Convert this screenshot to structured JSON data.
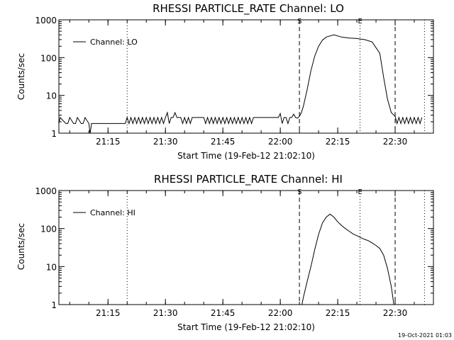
{
  "chart_data": [
    {
      "type": "line",
      "title": "RHESSI PARTICLE_RATE Channel: LO",
      "xlabel": "Start Time (19-Feb-12 21:02:10)",
      "ylabel": "Counts/sec",
      "yscale": "log",
      "ylim": [
        1,
        1000
      ],
      "xlim": [
        "21:02:10",
        "22:40:00"
      ],
      "ytick_labels": [
        "1",
        "10",
        "100",
        "1000"
      ],
      "xtick_labels": [
        "21:15",
        "21:30",
        "21:45",
        "22:00",
        "22:15",
        "22:30"
      ],
      "legend": {
        "entries": [
          "Channel: LO"
        ],
        "position": "top-left"
      },
      "series": [
        {
          "name": "Channel: LO",
          "x": [
            "21:02:10",
            "21:02:30",
            "21:04:00",
            "21:04:30",
            "21:05:00",
            "21:06:00",
            "21:06:30",
            "21:07:00",
            "21:08:00",
            "21:08:30",
            "21:09:00",
            "21:10:00",
            "21:10:20",
            "21:10:40",
            "21:11:00",
            "21:14:00",
            "21:17:00",
            "21:19:30",
            "21:20:00",
            "21:20:30",
            "21:21:00",
            "21:21:30",
            "21:22:00",
            "21:22:30",
            "21:23:00",
            "21:23:30",
            "21:24:00",
            "21:24:30",
            "21:25:00",
            "21:25:30",
            "21:26:00",
            "21:26:30",
            "21:27:00",
            "21:27:30",
            "21:28:00",
            "21:28:30",
            "21:29:00",
            "21:29:30",
            "21:30:00",
            "21:30:30",
            "21:31:00",
            "21:31:30",
            "21:32:00",
            "21:32:30",
            "21:33:00",
            "21:33:30",
            "21:34:00",
            "21:34:30",
            "21:35:00",
            "21:35:30",
            "21:36:00",
            "21:36:30",
            "21:37:00",
            "21:38:00",
            "21:39:00",
            "21:40:00",
            "21:40:30",
            "21:41:00",
            "21:41:30",
            "21:42:00",
            "21:42:30",
            "21:43:00",
            "21:43:30",
            "21:44:00",
            "21:44:30",
            "21:45:00",
            "21:45:30",
            "21:46:00",
            "21:46:30",
            "21:47:00",
            "21:47:30",
            "21:48:00",
            "21:48:30",
            "21:49:00",
            "21:49:30",
            "21:50:00",
            "21:50:30",
            "21:51:00",
            "21:51:30",
            "21:52:00",
            "21:52:30",
            "21:53:00",
            "21:54:00",
            "21:55:00",
            "21:56:00",
            "21:57:00",
            "21:58:00",
            "21:59:00",
            "21:59:30",
            "22:00:00",
            "22:00:30",
            "22:01:00",
            "22:01:30",
            "22:02:00",
            "22:02:30",
            "22:03:00",
            "22:03:30",
            "22:04:00",
            "22:04:30",
            "22:05:00",
            "22:05:30",
            "22:06:00",
            "22:07:00",
            "22:08:00",
            "22:09:00",
            "22:10:00",
            "22:11:00",
            "22:12:00",
            "22:14:00",
            "22:16:00",
            "22:18:00",
            "22:20:00",
            "22:22:00",
            "22:24:00",
            "22:26:00",
            "22:27:00",
            "22:28:00",
            "22:29:00",
            "22:30:00",
            "22:30:30",
            "22:31:00",
            "22:31:30",
            "22:32:00",
            "22:32:30",
            "22:33:00",
            "22:33:30",
            "22:34:00",
            "22:34:30",
            "22:35:00",
            "22:35:30",
            "22:36:00",
            "22:36:30",
            "22:37:00"
          ],
          "y": [
            1.8,
            2.6,
            1.8,
            1.8,
            2.6,
            1.8,
            1.8,
            2.6,
            1.8,
            1.8,
            2.6,
            1.8,
            0.95,
            1.8,
            1.8,
            1.8,
            1.8,
            1.8,
            2.6,
            1.8,
            2.6,
            1.8,
            2.6,
            1.8,
            2.6,
            1.8,
            2.6,
            1.8,
            2.6,
            1.8,
            2.6,
            1.8,
            2.6,
            1.8,
            2.6,
            1.8,
            2.6,
            1.8,
            2.6,
            3.5,
            1.8,
            2.6,
            2.6,
            3.5,
            2.6,
            2.6,
            2.6,
            1.8,
            2.6,
            1.8,
            2.6,
            1.8,
            2.6,
            2.6,
            2.6,
            2.6,
            1.8,
            2.6,
            1.8,
            2.6,
            1.8,
            2.6,
            1.8,
            2.6,
            1.8,
            2.6,
            1.8,
            2.6,
            1.8,
            2.6,
            1.8,
            2.6,
            1.8,
            2.6,
            1.8,
            2.6,
            1.8,
            2.6,
            1.8,
            2.6,
            1.8,
            2.6,
            2.6,
            2.6,
            2.6,
            2.6,
            2.6,
            2.6,
            2.6,
            3.3,
            1.8,
            2.6,
            2.6,
            1.8,
            2.6,
            2.6,
            3.2,
            2.6,
            2.5,
            2.8,
            3.5,
            5,
            14,
            45,
            110,
            200,
            290,
            350,
            400,
            350,
            330,
            320,
            300,
            260,
            130,
            30,
            8,
            3.5,
            2.8,
            1.8,
            2.6,
            1.8,
            2.6,
            1.8,
            2.6,
            1.8,
            2.6,
            1.8,
            2.6,
            1.8,
            2.6,
            1.8,
            2.6
          ]
        }
      ],
      "markers": [
        {
          "label": "S",
          "x": "22:05:00",
          "style": "dashed"
        },
        {
          "label": "E",
          "x": "22:20:50",
          "style": "dotted"
        },
        {
          "label": "",
          "x": "22:30:00",
          "style": "dashed"
        },
        {
          "label": "",
          "x": "21:20:00",
          "style": "dotted"
        },
        {
          "label": "",
          "x": "22:37:40",
          "style": "dotted"
        }
      ]
    },
    {
      "type": "line",
      "title": "RHESSI PARTICLE_RATE Channel: HI",
      "xlabel": "Start Time (19-Feb-12 21:02:10)",
      "ylabel": "Counts/sec",
      "yscale": "log",
      "ylim": [
        1,
        1000
      ],
      "xlim": [
        "21:02:10",
        "22:40:00"
      ],
      "ytick_labels": [
        "1",
        "10",
        "100",
        "1000"
      ],
      "xtick_labels": [
        "21:15",
        "21:30",
        "21:45",
        "22:00",
        "22:15",
        "22:30"
      ],
      "legend": {
        "entries": [
          "Channel: HI"
        ],
        "position": "top-left"
      },
      "series": [
        {
          "name": "Channel: HI",
          "x": [
            "22:05:40",
            "22:06:00",
            "22:07:00",
            "22:08:00",
            "22:09:00",
            "22:10:00",
            "22:11:00",
            "22:12:00",
            "22:13:00",
            "22:14:00",
            "22:15:00",
            "22:16:00",
            "22:17:00",
            "22:18:00",
            "22:19:00",
            "22:20:00",
            "22:21:00",
            "22:22:00",
            "22:23:00",
            "22:24:00",
            "22:25:00",
            "22:26:00",
            "22:27:00",
            "22:28:00",
            "22:29:00",
            "22:29:40"
          ],
          "y": [
            1.0,
            1.5,
            4,
            10,
            28,
            70,
            140,
            200,
            240,
            200,
            150,
            120,
            100,
            85,
            72,
            65,
            58,
            52,
            48,
            42,
            36,
            30,
            20,
            9,
            3,
            1.0
          ]
        }
      ],
      "markers": [
        {
          "label": "S",
          "x": "22:05:00",
          "style": "dashed"
        },
        {
          "label": "E",
          "x": "22:20:50",
          "style": "dotted"
        },
        {
          "label": "",
          "x": "22:30:00",
          "style": "dashed"
        },
        {
          "label": "",
          "x": "21:20:00",
          "style": "dotted"
        },
        {
          "label": "",
          "x": "22:37:40",
          "style": "dotted"
        }
      ]
    }
  ],
  "footer": {
    "stamp": "19-Oct-2021 01:03"
  }
}
